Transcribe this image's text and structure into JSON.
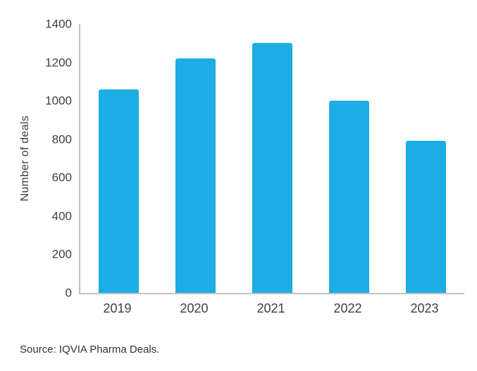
{
  "chart_data": {
    "type": "bar",
    "categories": [
      "2019",
      "2020",
      "2021",
      "2022",
      "2023"
    ],
    "values": [
      1060,
      1220,
      1300,
      1000,
      790
    ],
    "title": "",
    "xlabel": "",
    "ylabel": "Number of deals",
    "ylim": [
      0,
      1400
    ],
    "ytick_step": 200,
    "bar_color": "#1cade4",
    "axis_color": "#c2c2c2",
    "grid": false,
    "legend_position": "none"
  },
  "footer": {
    "source": "Source: IQVIA Pharma Deals."
  }
}
